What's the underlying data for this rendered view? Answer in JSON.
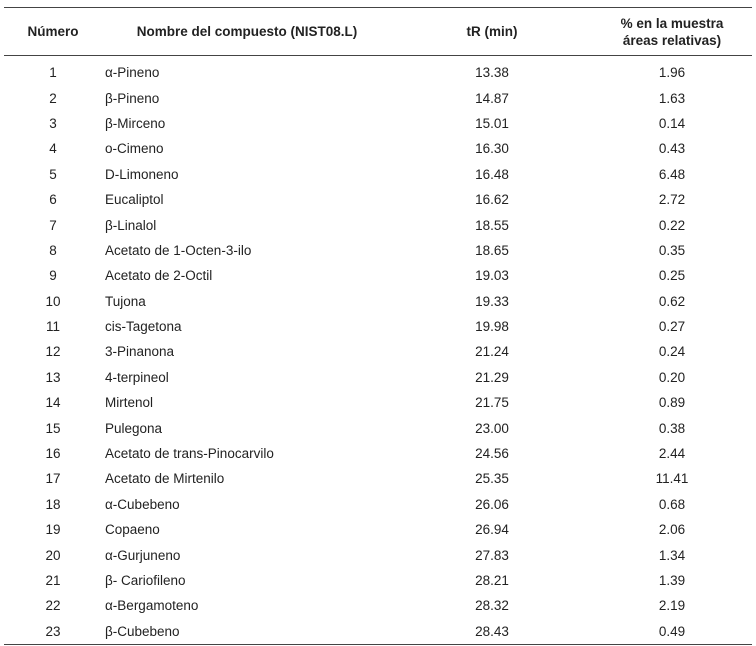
{
  "table": {
    "headers": {
      "num": "Número",
      "name": "Nombre del compuesto (NIST08.L)",
      "tr": "tR (min)",
      "pct_line1": "% en la muestra",
      "pct_line2": "áreas relativas)"
    },
    "rows": [
      {
        "num": "1",
        "name": "α-Pineno",
        "tr": "13.38",
        "pct": "1.96"
      },
      {
        "num": "2",
        "name": "β-Pineno",
        "tr": "14.87",
        "pct": "1.63"
      },
      {
        "num": "3",
        "name": "β-Mirceno",
        "tr": "15.01",
        "pct": "0.14"
      },
      {
        "num": "4",
        "name": "o-Cimeno",
        "tr": "16.30",
        "pct": "0.43"
      },
      {
        "num": "5",
        "name": "D-Limoneno",
        "tr": "16.48",
        "pct": "6.48"
      },
      {
        "num": "6",
        "name": "Eucaliptol",
        "tr": "16.62",
        "pct": "2.72"
      },
      {
        "num": "7",
        "name": "β-Linalol",
        "tr": "18.55",
        "pct": "0.22"
      },
      {
        "num": "8",
        "name": "Acetato de 1-Octen-3-ilo",
        "tr": "18.65",
        "pct": "0.35"
      },
      {
        "num": "9",
        "name": "Acetato de 2-Octil",
        "tr": "19.03",
        "pct": "0.25"
      },
      {
        "num": "10",
        "name": "Tujona",
        "tr": "19.33",
        "pct": "0.62"
      },
      {
        "num": "11",
        "name": "cis-Tagetona",
        "tr": "19.98",
        "pct": "0.27"
      },
      {
        "num": "12",
        "name": "3-Pinanona",
        "tr": "21.24",
        "pct": "0.24"
      },
      {
        "num": "13",
        "name": "4-terpineol",
        "tr": "21.29",
        "pct": "0.20"
      },
      {
        "num": "14",
        "name": "Mirtenol",
        "tr": "21.75",
        "pct": "0.89"
      },
      {
        "num": "15",
        "name": "Pulegona",
        "tr": "23.00",
        "pct": "0.38"
      },
      {
        "num": "16",
        "name": "Acetato de trans-Pinocarvilo",
        "tr": "24.56",
        "pct": "2.44"
      },
      {
        "num": "17",
        "name": "Acetato de Mirtenilo",
        "tr": "25.35",
        "pct": "11.41"
      },
      {
        "num": "18",
        "name": "α-Cubebeno",
        "tr": "26.06",
        "pct": "0.68"
      },
      {
        "num": "19",
        "name": "Copaeno",
        "tr": "26.94",
        "pct": "2.06"
      },
      {
        "num": "20",
        "name": "α-Gurjuneno",
        "tr": "27.83",
        "pct": "1.34"
      },
      {
        "num": "21",
        "name": "β- Cariofileno",
        "tr": "28.21",
        "pct": "1.39"
      },
      {
        "num": "22",
        "name": "α-Bergamoteno",
        "tr": "28.32",
        "pct": "2.19"
      },
      {
        "num": "23",
        "name": "β-Cubebeno",
        "tr": "28.43",
        "pct": "0.49"
      }
    ]
  }
}
